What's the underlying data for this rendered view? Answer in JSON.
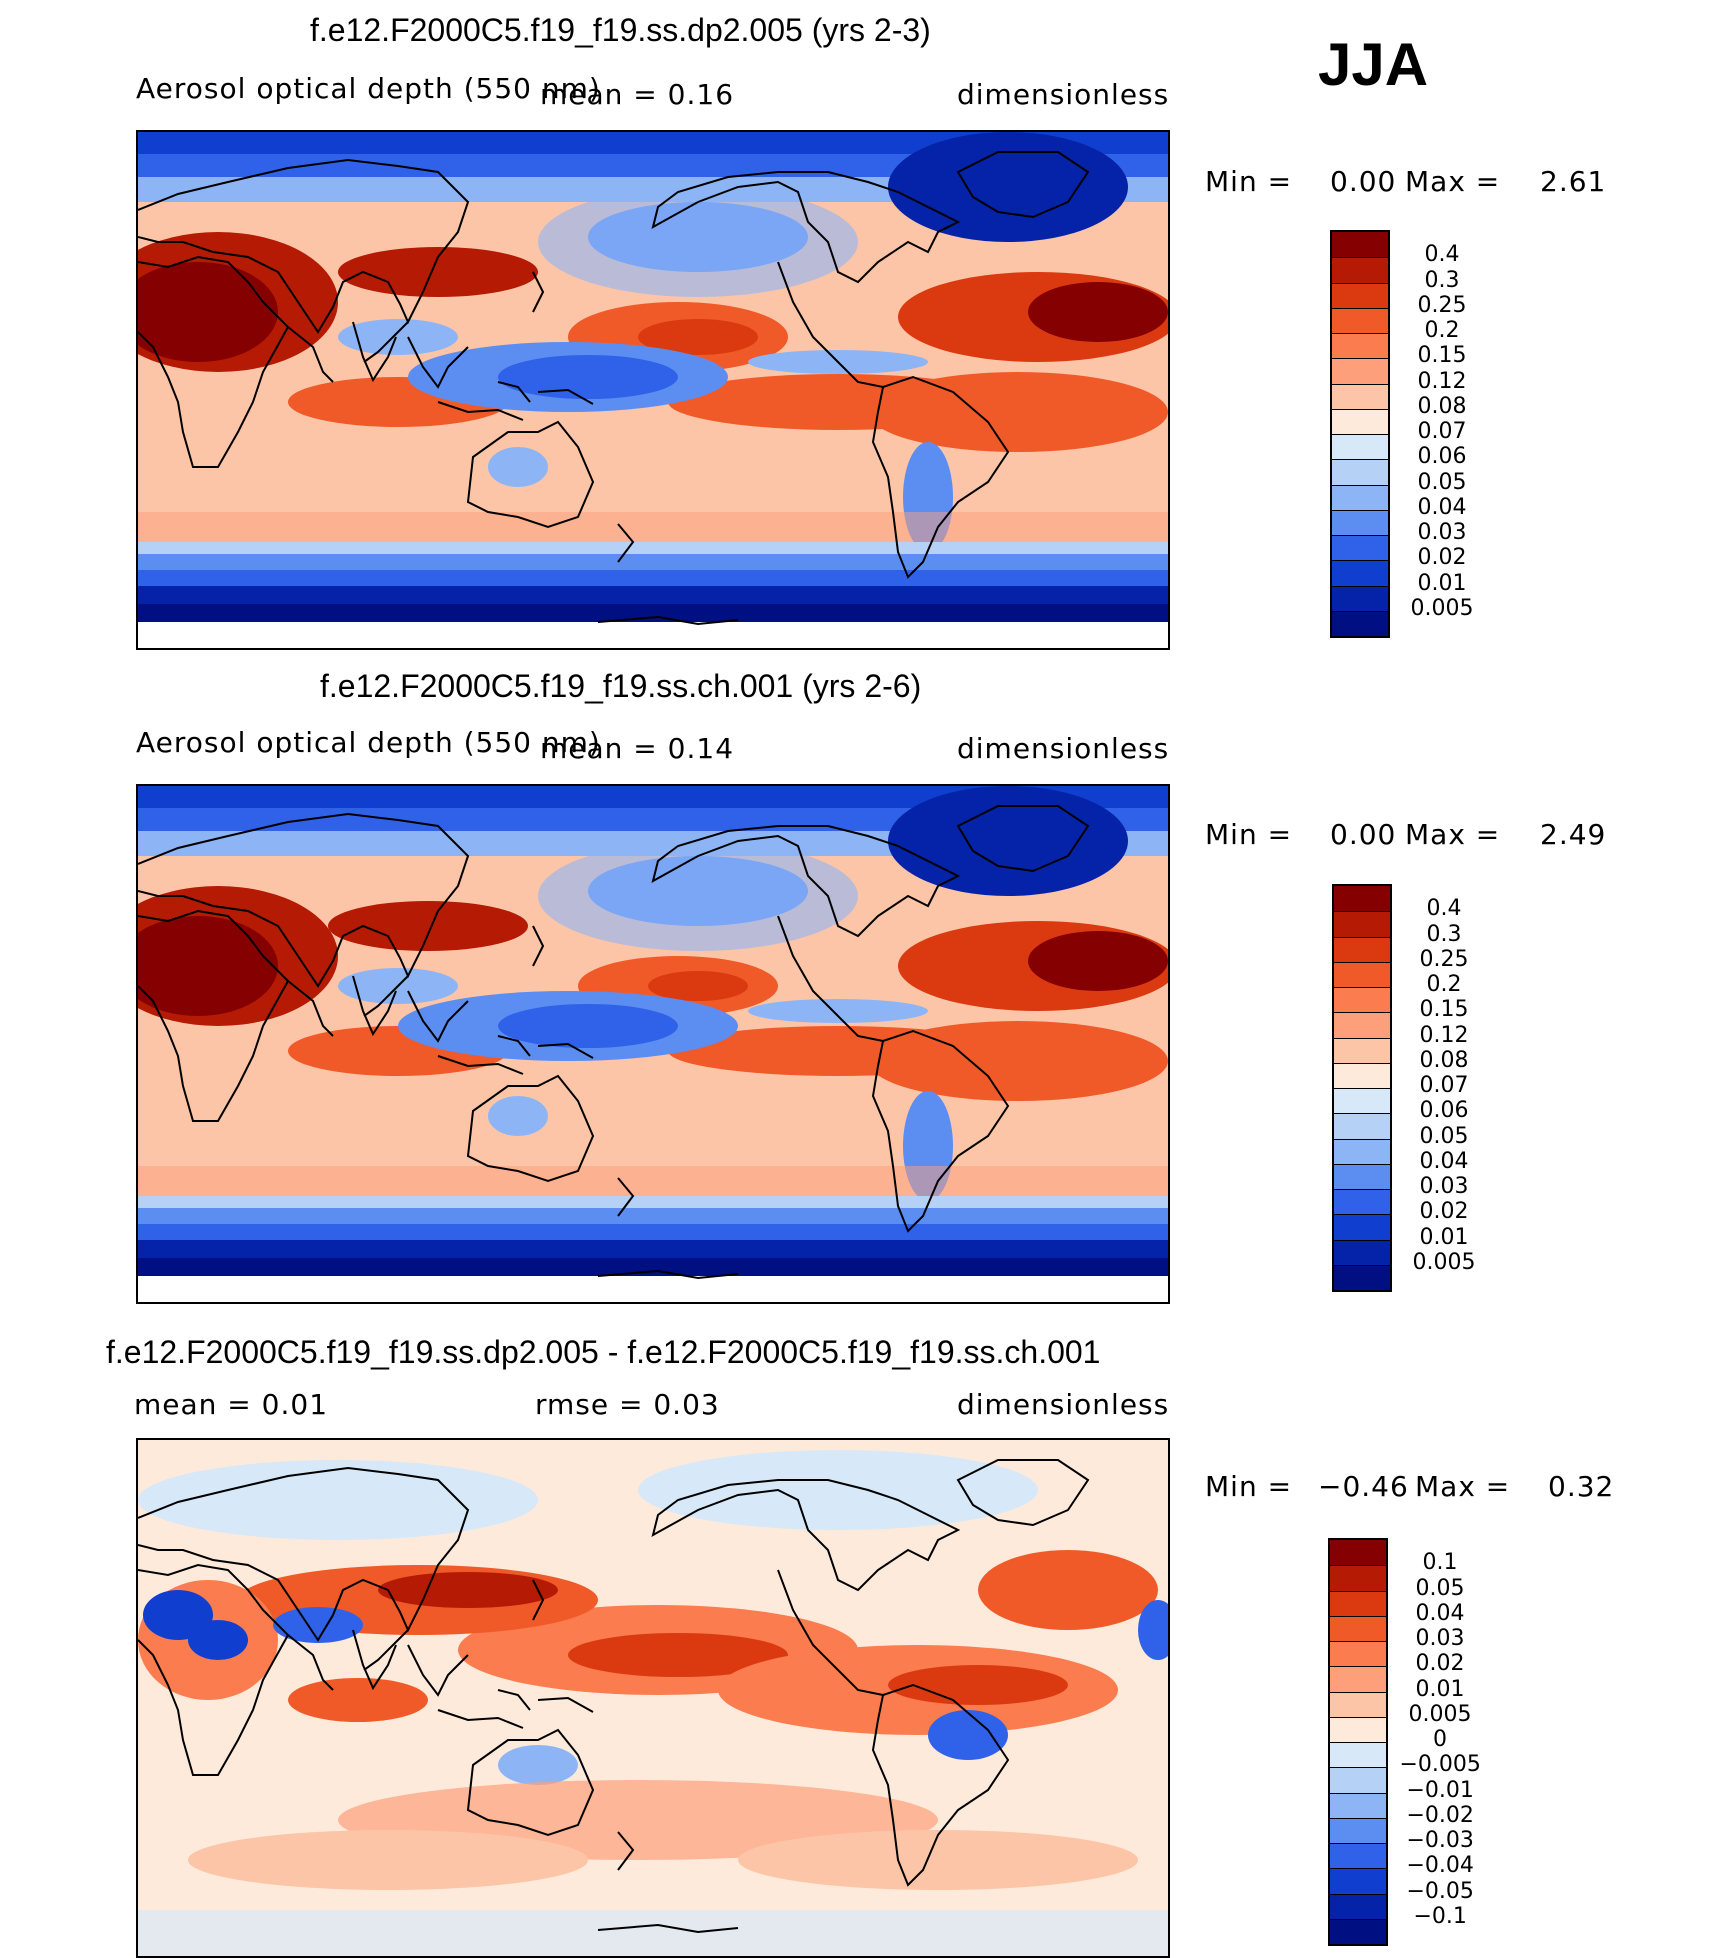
{
  "season": "JJA",
  "units": "dimensionless",
  "colors": {
    "ocean_low": "#00108a",
    "ocean_high": "#fdc5a7",
    "hot": "#850000",
    "land": "#000000"
  },
  "panels": [
    {
      "title": "f.e12.F2000C5.f19_f19.ss.dp2.005 (yrs 2-3)",
      "left_label": "Aerosol optical depth (550 nm)",
      "center_label": "mean =   0.16",
      "right_label": "dimensionless",
      "min_label": "Min =",
      "min_value": "0.00",
      "max_label": "Max =",
      "max_value": "2.61"
    },
    {
      "title": "f.e12.F2000C5.f19_f19.ss.ch.001 (yrs 2-6)",
      "left_label": "Aerosol optical depth (550 nm)",
      "center_label": "mean =   0.14",
      "right_label": "dimensionless",
      "min_label": "Min =",
      "min_value": "0.00",
      "max_label": "Max =",
      "max_value": "2.49"
    },
    {
      "title": "f.e12.F2000C5.f19_f19.ss.dp2.005 - f.e12.F2000C5.f19_f19.ss.ch.001",
      "left_label": "mean =   0.01",
      "center_label": "rmse =   0.03",
      "right_label": "dimensionless",
      "min_label": "Min =",
      "min_value": "−0.46",
      "max_label": "Max =",
      "max_value": "0.32"
    }
  ],
  "colorbars": [
    {
      "labels": [
        "0.4",
        "0.3",
        "0.25",
        "0.2",
        "0.15",
        "0.12",
        "0.08",
        "0.07",
        "0.06",
        "0.05",
        "0.04",
        "0.03",
        "0.02",
        "0.01",
        "0.005"
      ],
      "colors": [
        "#850000",
        "#b51a05",
        "#db3a10",
        "#f05a28",
        "#fa7c4f",
        "#fc9f7a",
        "#fdc5a7",
        "#feeadb",
        "#d7e8f8",
        "#b5d1f6",
        "#8db5f6",
        "#5c8ef2",
        "#2f62e8",
        "#103fd0",
        "#0423a8",
        "#000f82"
      ]
    },
    {
      "labels": [
        "0.4",
        "0.3",
        "0.25",
        "0.2",
        "0.15",
        "0.12",
        "0.08",
        "0.07",
        "0.06",
        "0.05",
        "0.04",
        "0.03",
        "0.02",
        "0.01",
        "0.005"
      ],
      "colors": [
        "#850000",
        "#b51a05",
        "#db3a10",
        "#f05a28",
        "#fa7c4f",
        "#fc9f7a",
        "#fdc5a7",
        "#feeadb",
        "#d7e8f8",
        "#b5d1f6",
        "#8db5f6",
        "#5c8ef2",
        "#2f62e8",
        "#103fd0",
        "#0423a8",
        "#000f82"
      ]
    },
    {
      "labels": [
        "0.1",
        "0.05",
        "0.04",
        "0.03",
        "0.02",
        "0.01",
        "0.005",
        "0",
        "−0.005",
        "−0.01",
        "−0.02",
        "−0.03",
        "−0.04",
        "−0.05",
        "−0.1"
      ],
      "colors": [
        "#850000",
        "#b51a05",
        "#db3a10",
        "#f05a28",
        "#fa7c4f",
        "#fc9f7a",
        "#fdc5a7",
        "#feeadb",
        "#d7e8f8",
        "#b5d1f6",
        "#8db5f6",
        "#5c8ef2",
        "#2f62e8",
        "#103fd0",
        "#0423a8",
        "#000f82"
      ]
    }
  ]
}
